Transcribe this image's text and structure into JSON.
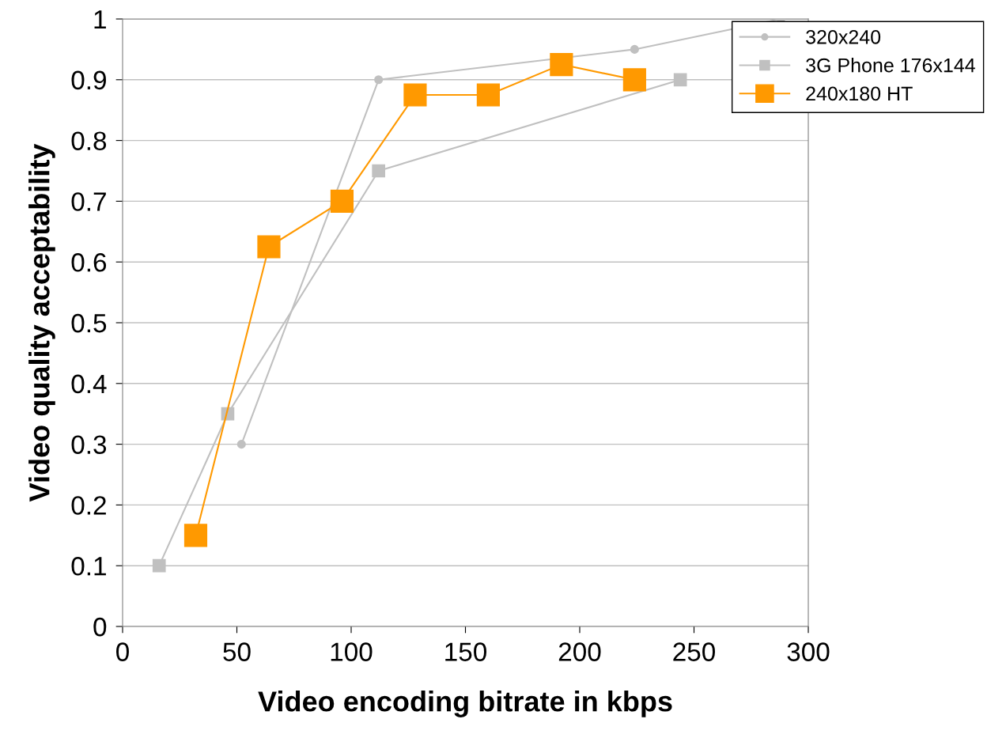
{
  "chart_data": {
    "type": "line",
    "xlabel": "Video encoding bitrate in kbps",
    "ylabel": "Video quality acceptability",
    "xlim": [
      0,
      300
    ],
    "xticks": [
      0,
      50,
      100,
      150,
      200,
      250,
      300
    ],
    "ylim": [
      0,
      1
    ],
    "yticks": [
      0,
      0.1,
      0.2,
      0.3,
      0.4,
      0.5,
      0.6,
      0.7,
      0.8,
      0.9,
      1
    ],
    "grid": "y",
    "legend": "top right",
    "series": [
      {
        "name": "320x240",
        "color": "#c0c0c0",
        "marker": "circle",
        "x": [
          52,
          112,
          224,
          288
        ],
        "values": [
          0.3,
          0.9,
          0.95,
          1.0
        ]
      },
      {
        "name": "3G Phone 176x144",
        "color": "#c0c0c0",
        "marker": "square",
        "x": [
          16,
          46,
          112,
          244
        ],
        "values": [
          0.1,
          0.35,
          0.75,
          0.9
        ]
      },
      {
        "name": "240x180 HT",
        "color": "#ff9900",
        "marker": "square",
        "x": [
          32,
          64,
          96,
          128,
          160,
          192,
          224
        ],
        "values": [
          0.15,
          0.625,
          0.7,
          0.875,
          0.875,
          0.925,
          0.9
        ]
      }
    ]
  }
}
